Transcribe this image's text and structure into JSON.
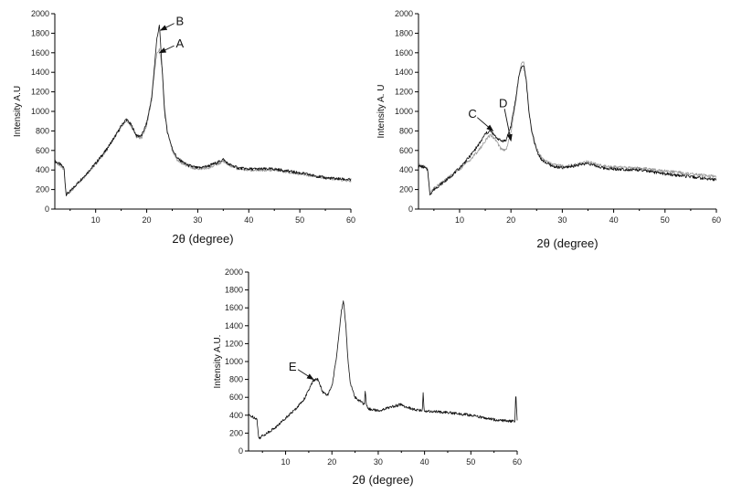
{
  "chart_data": [
    {
      "type": "line",
      "xlabel": "2θ (degree)",
      "ylabel": "Intensity A.U",
      "xlim": [
        2,
        60
      ],
      "ylim": [
        0,
        2000
      ],
      "xticks": [
        10,
        20,
        30,
        40,
        50,
        60
      ],
      "yticks": [
        0,
        200,
        400,
        600,
        800,
        1000,
        1200,
        1400,
        1600,
        1800,
        2000
      ],
      "grid": false,
      "colors": [
        "#111111",
        "#9a9a9a"
      ],
      "series": [
        {
          "x": [
            2,
            3,
            3.8,
            4.2,
            5,
            6,
            8,
            10,
            12,
            14,
            15,
            16,
            17,
            18,
            19,
            20,
            21,
            21.5,
            22,
            22.5,
            23,
            23.5,
            24,
            25,
            26,
            28,
            30,
            32,
            34,
            35,
            36,
            38,
            40,
            45,
            50,
            55,
            60
          ],
          "values": [
            490,
            460,
            420,
            150,
            180,
            240,
            350,
            470,
            600,
            760,
            850,
            920,
            860,
            750,
            750,
            880,
            1150,
            1450,
            1750,
            1880,
            1450,
            1000,
            800,
            620,
            520,
            450,
            420,
            440,
            480,
            510,
            460,
            420,
            410,
            410,
            370,
            320,
            300
          ]
        },
        {
          "x": [
            2,
            3,
            3.8,
            4.2,
            5,
            6,
            8,
            10,
            12,
            14,
            15,
            16,
            17,
            18,
            19,
            20,
            21,
            21.5,
            22,
            22.5,
            23,
            23.5,
            24,
            25,
            26,
            28,
            30,
            32,
            34,
            35,
            36,
            38,
            40,
            45,
            50,
            55,
            60
          ],
          "values": [
            480,
            450,
            410,
            145,
            175,
            235,
            340,
            460,
            590,
            750,
            840,
            905,
            850,
            740,
            730,
            860,
            1120,
            1400,
            1600,
            1640,
            1450,
            1050,
            820,
            600,
            500,
            440,
            410,
            420,
            460,
            490,
            450,
            410,
            400,
            400,
            360,
            320,
            290
          ]
        }
      ],
      "annotations": [
        {
          "text": "B",
          "x": 26.5,
          "y": 1930,
          "ax": 22.7,
          "ay": 1830
        },
        {
          "text": "A",
          "x": 26.5,
          "y": 1700,
          "ax": 22.5,
          "ay": 1600
        }
      ]
    },
    {
      "type": "line",
      "xlabel": "2θ (degree)",
      "ylabel": "Intensity A. U",
      "xlim": [
        2,
        60
      ],
      "ylim": [
        0,
        2000
      ],
      "xticks": [
        10,
        20,
        30,
        40,
        50,
        60
      ],
      "yticks": [
        0,
        200,
        400,
        600,
        800,
        1000,
        1200,
        1400,
        1600,
        1800,
        2000
      ],
      "grid": false,
      "colors": [
        "#111111",
        "#9a9a9a"
      ],
      "series": [
        {
          "x": [
            2,
            3,
            3.8,
            4.2,
            5,
            6,
            8,
            10,
            12,
            14,
            15,
            16,
            17,
            18,
            19,
            20,
            21,
            21.5,
            22,
            22.5,
            23,
            23.5,
            24,
            25,
            26,
            28,
            30,
            32,
            34,
            35,
            36,
            38,
            40,
            45,
            50,
            55,
            60
          ],
          "values": [
            440,
            430,
            400,
            150,
            200,
            240,
            320,
            420,
            540,
            680,
            770,
            800,
            740,
            700,
            700,
            850,
            1150,
            1350,
            1450,
            1470,
            1300,
            1000,
            800,
            600,
            500,
            440,
            420,
            440,
            460,
            470,
            450,
            420,
            410,
            400,
            360,
            330,
            300
          ]
        },
        {
          "x": [
            2,
            3,
            3.8,
            4.2,
            5,
            6,
            8,
            10,
            12,
            14,
            15,
            16,
            17,
            18,
            19,
            20,
            21,
            21.5,
            22,
            22.5,
            23,
            23.5,
            24,
            25,
            26,
            28,
            30,
            32,
            34,
            35,
            36,
            38,
            40,
            45,
            50,
            55,
            60
          ],
          "values": [
            450,
            440,
            410,
            160,
            210,
            250,
            330,
            410,
            500,
            620,
            700,
            760,
            710,
            620,
            600,
            780,
            1120,
            1350,
            1480,
            1510,
            1320,
            1020,
            820,
            620,
            520,
            460,
            440,
            450,
            470,
            490,
            470,
            440,
            430,
            420,
            390,
            360,
            330
          ]
        }
      ],
      "annotations": [
        {
          "text": "C",
          "x": 12.5,
          "y": 980,
          "ax": 16.5,
          "ay": 800
        },
        {
          "text": "D",
          "x": 18.5,
          "y": 1090,
          "ax": 20,
          "ay": 700
        }
      ]
    },
    {
      "type": "line",
      "xlabel": "2θ (degree)",
      "ylabel": "Intensity A.U.",
      "xlim": [
        2,
        60
      ],
      "ylim": [
        0,
        2000
      ],
      "xticks": [
        10,
        20,
        30,
        40,
        50,
        60
      ],
      "yticks": [
        0,
        200,
        400,
        600,
        800,
        1000,
        1200,
        1400,
        1600,
        1800,
        2000
      ],
      "grid": false,
      "colors": [
        "#111111"
      ],
      "series": [
        {
          "x": [
            2,
            3,
            3.8,
            4.2,
            5,
            6,
            8,
            10,
            12,
            14,
            15,
            16,
            17,
            18,
            19,
            20,
            21,
            21.5,
            22,
            22.5,
            23,
            23.5,
            24,
            25,
            26,
            27,
            27.2,
            27.4,
            28,
            30,
            32,
            34,
            35,
            36,
            38,
            39.5,
            39.7,
            39.9,
            42,
            45,
            50,
            55,
            59.5,
            59.7,
            60
          ],
          "values": [
            400,
            380,
            360,
            140,
            170,
            200,
            270,
            370,
            460,
            580,
            680,
            790,
            800,
            660,
            620,
            720,
            1050,
            1300,
            1550,
            1680,
            1400,
            1000,
            750,
            600,
            560,
            520,
            680,
            520,
            470,
            450,
            480,
            510,
            520,
            490,
            460,
            450,
            650,
            450,
            440,
            430,
            400,
            350,
            330,
            650,
            330
          ]
        }
      ],
      "annotations": [
        {
          "text": "E",
          "x": 11.5,
          "y": 950,
          "ax": 16,
          "ay": 800
        }
      ]
    }
  ]
}
